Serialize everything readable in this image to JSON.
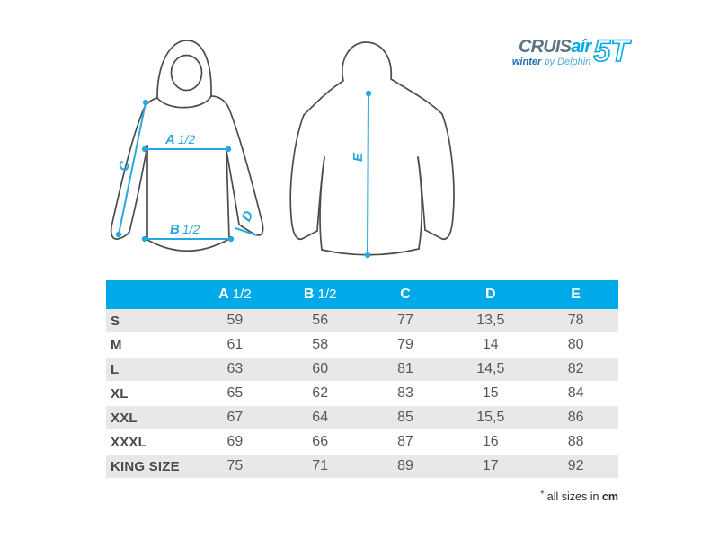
{
  "logo": {
    "brand_main": "CRUIS",
    "brand_accent": "aír",
    "brand_model": "5T",
    "tagline_bold": "winter",
    "tagline_rest": "by Delphin"
  },
  "diagram": {
    "front": {
      "label_a": "A",
      "label_a_frac": "1/2",
      "label_b": "B",
      "label_b_frac": "1/2",
      "label_c": "C",
      "label_d": "D"
    },
    "back": {
      "label_e": "E"
    }
  },
  "table": {
    "columns": [
      {
        "letter": "A",
        "fraction": "1/2"
      },
      {
        "letter": "B",
        "fraction": "1/2"
      },
      {
        "letter": "C",
        "fraction": ""
      },
      {
        "letter": "D",
        "fraction": ""
      },
      {
        "letter": "E",
        "fraction": ""
      }
    ],
    "rows": [
      {
        "size": "S",
        "values": [
          "59",
          "56",
          "77",
          "13,5",
          "78"
        ]
      },
      {
        "size": "M",
        "values": [
          "61",
          "58",
          "79",
          "14",
          "80"
        ]
      },
      {
        "size": "L",
        "values": [
          "63",
          "60",
          "81",
          "14,5",
          "82"
        ]
      },
      {
        "size": "XL",
        "values": [
          "65",
          "62",
          "83",
          "15",
          "84"
        ]
      },
      {
        "size": "XXL",
        "values": [
          "67",
          "64",
          "85",
          "15,5",
          "86"
        ]
      },
      {
        "size": "XXXL",
        "values": [
          "69",
          "66",
          "87",
          "16",
          "88"
        ]
      },
      {
        "size": "KING SIZE",
        "values": [
          "75",
          "71",
          "89",
          "17",
          "92"
        ]
      }
    ]
  },
  "footnote": {
    "star": "*",
    "prefix": " all sizes in ",
    "unit": "cm"
  },
  "colors": {
    "accent_cyan": "#00a9e8",
    "measure_line_cyan": "#29a8e0",
    "jacket_outline_gray": "#4c4c4c",
    "row_alt_gray": "#e8e8e8",
    "size_label_gray": "#4a4a4a",
    "value_gray": "#575757",
    "logo_slate": "#5d7486",
    "logo_blue_dark": "#1e6cb0",
    "logo_blue_light": "#54a7d9"
  }
}
